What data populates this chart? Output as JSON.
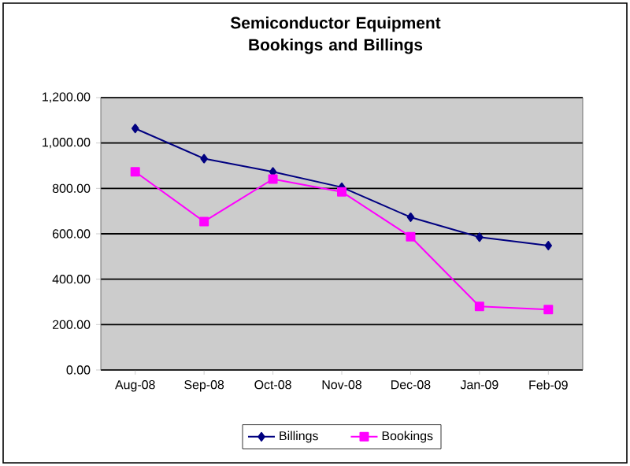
{
  "chart_data": {
    "type": "line",
    "title": "Semiconductor Equipment\nBookings and Billings",
    "categories": [
      "Aug-08",
      "Sep-08",
      "Oct-08",
      "Nov-08",
      "Dec-08",
      "Jan-09",
      "Feb-09"
    ],
    "series": [
      {
        "name": "Billings",
        "color": "#000080",
        "marker": "diamond",
        "values": [
          1064,
          931,
          873,
          805,
          673,
          585,
          548
        ]
      },
      {
        "name": "Bookings",
        "color": "#ff00ff",
        "marker": "square",
        "values": [
          873,
          654,
          841,
          785,
          587,
          280,
          266
        ]
      }
    ],
    "ylim": [
      0,
      1200
    ],
    "yticks": [
      {
        "value": 0,
        "label": "0.00"
      },
      {
        "value": 200,
        "label": "200.00"
      },
      {
        "value": 400,
        "label": "400.00"
      },
      {
        "value": 600,
        "label": "600.00"
      },
      {
        "value": 800,
        "label": "800.00"
      },
      {
        "value": 1000,
        "label": "1,000.00"
      },
      {
        "value": 1200,
        "label": "1,200.00"
      }
    ],
    "grid": "y",
    "legend": "bottom",
    "line_style": "solid"
  }
}
